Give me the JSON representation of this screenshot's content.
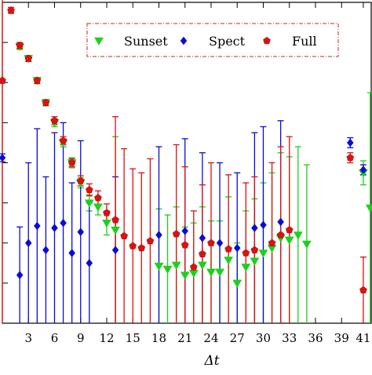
{
  "chart_data": {
    "type": "scatter",
    "xlabel": "Δt",
    "ylabel": "",
    "xlim": [
      0,
      42.5
    ],
    "ylim": [
      0,
      32
    ],
    "xticks": [
      3,
      6,
      9,
      12,
      15,
      18,
      21,
      24,
      27,
      30,
      33,
      36,
      39
    ],
    "xtick_labels": [
      "3",
      "6",
      "9",
      "12",
      "15",
      "18",
      "21",
      "24",
      "27",
      "30",
      "33",
      "36",
      "39",
      "41"
    ],
    "last_tick": 41.5,
    "grid": false,
    "legend_position": "top-center",
    "series": [
      {
        "name": "Sunset",
        "marker": "triangle-down",
        "color": "#19d219",
        "points": [
          {
            "x": 2,
            "y": 27.6,
            "err": 0.3
          },
          {
            "x": 3,
            "y": 26.4,
            "err": 0.3
          },
          {
            "x": 4,
            "y": 24.2,
            "err": 0.3
          },
          {
            "x": 5,
            "y": 22.0,
            "err": 0.3
          },
          {
            "x": 6,
            "y": 20.0,
            "err": 0.4
          },
          {
            "x": 7,
            "y": 18.0,
            "err": 0.4
          },
          {
            "x": 8,
            "y": 16.0,
            "err": 0.5
          },
          {
            "x": 9,
            "y": 14.0,
            "err": 0.5
          },
          {
            "x": 10,
            "y": 12.0,
            "err": 0.8
          },
          {
            "x": 11,
            "y": 11.6,
            "err": 0.8
          },
          {
            "x": 12,
            "y": 10.0,
            "err": 1.2
          },
          {
            "x": 13,
            "y": 9.3,
            "err": 9.3
          },
          {
            "x": 18,
            "y": 5.7,
            "err": 5.7
          },
          {
            "x": 19,
            "y": 5.4,
            "err": 5.4
          },
          {
            "x": 20,
            "y": 5.8,
            "err": 5.8
          },
          {
            "x": 21,
            "y": 4.8,
            "err": 4.8
          },
          {
            "x": 22,
            "y": 5.0,
            "err": 5.0
          },
          {
            "x": 23,
            "y": 5.8,
            "err": 5.8
          },
          {
            "x": 24,
            "y": 5.1,
            "err": 5.1
          },
          {
            "x": 25,
            "y": 5.1,
            "err": 5.1
          },
          {
            "x": 26,
            "y": 6.3,
            "err": 6.3
          },
          {
            "x": 27,
            "y": 4.0,
            "err": 4.0
          },
          {
            "x": 28,
            "y": 5.6,
            "err": 5.6
          },
          {
            "x": 29,
            "y": 6.2,
            "err": 6.2
          },
          {
            "x": 30,
            "y": 7.0,
            "err": 7.0
          },
          {
            "x": 31,
            "y": 7.5,
            "err": 7.5
          },
          {
            "x": 32,
            "y": 8.5,
            "err": 8.5
          },
          {
            "x": 33,
            "y": 8.3,
            "err": 8.3
          },
          {
            "x": 34,
            "y": 8.8,
            "err": 8.8
          },
          {
            "x": 35,
            "y": 7.9,
            "err": 7.9
          },
          {
            "x": 41.5,
            "y": 15.0,
            "err": 1.2
          },
          {
            "x": 42.3,
            "y": 11.5,
            "err": 11.5
          }
        ]
      },
      {
        "name": "Spect",
        "marker": "diamond",
        "color": "#0a0ad8",
        "points": [
          {
            "x": 0,
            "y": 16.5,
            "err": 0.4
          },
          {
            "x": 2,
            "y": 4.8,
            "err": 4.8
          },
          {
            "x": 3,
            "y": 8.0,
            "err": 8.0
          },
          {
            "x": 4,
            "y": 9.7,
            "err": 9.7
          },
          {
            "x": 5,
            "y": 7.3,
            "err": 7.3
          },
          {
            "x": 6,
            "y": 9.5,
            "err": 9.5
          },
          {
            "x": 7,
            "y": 10.0,
            "err": 10.0
          },
          {
            "x": 8,
            "y": 7.0,
            "err": 7.0
          },
          {
            "x": 9,
            "y": 9.1,
            "err": 9.1
          },
          {
            "x": 10,
            "y": 6.0,
            "err": 6.0
          },
          {
            "x": 13,
            "y": 7.3,
            "err": 7.3
          },
          {
            "x": 18,
            "y": 8.8,
            "err": 8.8
          },
          {
            "x": 21,
            "y": 9.2,
            "err": 9.2
          },
          {
            "x": 23,
            "y": 8.5,
            "err": 8.5
          },
          {
            "x": 25,
            "y": 8.0,
            "err": 8.0
          },
          {
            "x": 27,
            "y": 7.5,
            "err": 7.5
          },
          {
            "x": 29,
            "y": 9.5,
            "err": 9.5
          },
          {
            "x": 30,
            "y": 9.8,
            "err": 9.8
          },
          {
            "x": 32,
            "y": 10.1,
            "err": 10.1
          },
          {
            "x": 40,
            "y": 18.0,
            "err": 0.5
          },
          {
            "x": 41.5,
            "y": 15.3,
            "err": 0.5
          }
        ]
      },
      {
        "name": "Full",
        "marker": "pentagon",
        "color": "#e01010",
        "points": [
          {
            "x": 0,
            "y": 24.2,
            "err": 24.2
          },
          {
            "x": 1,
            "y": 31.2,
            "err": 0.3
          },
          {
            "x": 2,
            "y": 27.7,
            "err": 0.3
          },
          {
            "x": 3,
            "y": 26.4,
            "err": 0.3
          },
          {
            "x": 4,
            "y": 24.2,
            "err": 0.3
          },
          {
            "x": 5,
            "y": 22.0,
            "err": 0.3
          },
          {
            "x": 6,
            "y": 20.2,
            "err": 0.4
          },
          {
            "x": 7,
            "y": 18.2,
            "err": 0.4
          },
          {
            "x": 8,
            "y": 16.0,
            "err": 0.4
          },
          {
            "x": 9,
            "y": 14.2,
            "err": 0.5
          },
          {
            "x": 10,
            "y": 13.3,
            "err": 0.6
          },
          {
            "x": 11,
            "y": 12.5,
            "err": 0.7
          },
          {
            "x": 12,
            "y": 11.0,
            "err": 0.9
          },
          {
            "x": 13,
            "y": 10.3,
            "err": 10.3
          },
          {
            "x": 14,
            "y": 8.7,
            "err": 8.7
          },
          {
            "x": 15,
            "y": 7.7,
            "err": 7.7
          },
          {
            "x": 16,
            "y": 7.5,
            "err": 7.5
          },
          {
            "x": 17,
            "y": 8.2,
            "err": 8.2
          },
          {
            "x": 20,
            "y": 8.9,
            "err": 8.9
          },
          {
            "x": 21,
            "y": 7.8,
            "err": 7.8
          },
          {
            "x": 22,
            "y": 5.6,
            "err": 5.6
          },
          {
            "x": 23,
            "y": 6.9,
            "err": 6.9
          },
          {
            "x": 24,
            "y": 8.0,
            "err": 8.0
          },
          {
            "x": 26,
            "y": 7.4,
            "err": 7.4
          },
          {
            "x": 28,
            "y": 7.0,
            "err": 7.0
          },
          {
            "x": 29,
            "y": 7.3,
            "err": 7.3
          },
          {
            "x": 31,
            "y": 8.0,
            "err": 8.0
          },
          {
            "x": 32,
            "y": 8.8,
            "err": 8.8
          },
          {
            "x": 33,
            "y": 9.3,
            "err": 9.3
          },
          {
            "x": 40,
            "y": 16.5,
            "err": 0.5
          },
          {
            "x": 41.5,
            "y": 3.3,
            "err": 3.3
          }
        ]
      }
    ]
  }
}
